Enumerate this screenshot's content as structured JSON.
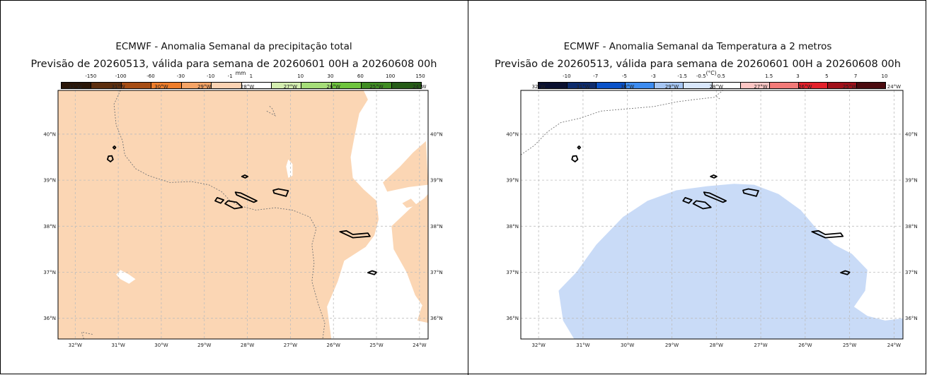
{
  "maps": [
    {
      "title": "ECMWF - Anomalia Semanal da precipitação total",
      "subtitle": "Previsão de 20260513, válida para semana de 20260601 00H a 20260608 00h",
      "colorbar": {
        "unit": "mm",
        "labels": [
          "-150",
          "-100",
          "-60",
          "-30",
          "-10",
          "-1",
          "1",
          "10",
          "30",
          "60",
          "100",
          "150"
        ],
        "colors": [
          "#2a1608",
          "#5c2e0e",
          "#a64d14",
          "#ee7d2a",
          "#f5a466",
          "#fbd3b3",
          "#ffffff",
          "#d4eeb0",
          "#a5dd78",
          "#6ec43d",
          "#3f8c22",
          "#255b17"
        ]
      },
      "fill_color": "#fbd6b4",
      "no_anomaly_color": "#ffffff",
      "lon_labels": [
        "32°W",
        "31°W",
        "30°W",
        "29°W",
        "28°W",
        "27°W",
        "26°W",
        "25°W",
        "24°W"
      ],
      "lat_labels": [
        "40°N",
        "39°N",
        "38°N",
        "37°N",
        "36°N"
      ],
      "lon_range": [
        -32.4,
        -23.8
      ],
      "lat_range": [
        35.55,
        40.95
      ]
    },
    {
      "title": "ECMWF - Anomalia Semanal da Temperatura a 2 metros",
      "subtitle": "Previsão de 20260513, válida para semana de 20260601 00H a 20260608 00h",
      "colorbar": {
        "unit": "(°C)",
        "labels": [
          "-10",
          "-7",
          "-5",
          "-3",
          "-1.5",
          "-0.5",
          "0.5",
          "1.5",
          "3",
          "5",
          "7",
          "10"
        ],
        "colors": [
          "#0a1030",
          "#0d2b6c",
          "#0a52c8",
          "#3d8cf0",
          "#a6c6f3",
          "#d9e7fb",
          "#ffffff",
          "#fcc6c4",
          "#f27a78",
          "#e3202a",
          "#a0101a",
          "#4a0a0e"
        ]
      },
      "fill_color": "#c9dbf7",
      "no_anomaly_color": "#ffffff",
      "lon_labels": [
        "32°W",
        "31°W",
        "30°W",
        "29°W",
        "28°W",
        "27°W",
        "26°W",
        "25°W",
        "24°W"
      ],
      "lat_labels": [
        "40°N",
        "39°N",
        "38°N",
        "37°N",
        "36°N"
      ],
      "lon_range": [
        -32.4,
        -23.8
      ],
      "lat_range": [
        35.55,
        40.95
      ]
    }
  ]
}
